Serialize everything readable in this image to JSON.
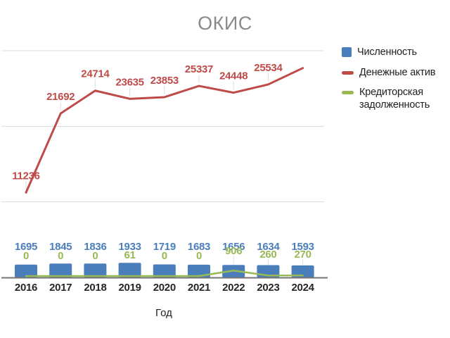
{
  "chart_data": {
    "type": "combo",
    "title": "ОКИС",
    "xlabel": "Год",
    "categories": [
      "2016",
      "2017",
      "2018",
      "2019",
      "2020",
      "2021",
      "2022",
      "2023",
      "2024"
    ],
    "series": [
      {
        "name": "Численность",
        "type": "bar",
        "color": "#4A7EBB",
        "values": [
          1695,
          1845,
          1836,
          1933,
          1719,
          1683,
          1656,
          1634,
          1593
        ],
        "labels_shown": true
      },
      {
        "name": "Денежные актив",
        "type": "line",
        "color": "#BE4B48",
        "values": [
          11236,
          21692,
          24714,
          23635,
          23853,
          25337,
          24448,
          25534,
          27700
        ],
        "point_labels": [
          "11236",
          "21692",
          "24714",
          "23635",
          "23853",
          "25337",
          "24448",
          "25534",
          null
        ]
      },
      {
        "name": "Кредиторская задолженность",
        "type": "line",
        "color": "#98B954",
        "values": [
          0,
          0,
          0,
          61,
          0,
          0,
          906,
          260,
          270
        ],
        "labels_shown": true
      }
    ],
    "ylim": [
      0,
      30000
    ],
    "gridline_values": [
      10000,
      20000,
      30000
    ],
    "grid": true,
    "y_axis_labels_shown": false,
    "legend_position": "right",
    "axis_color": "#757575",
    "gridline_color": "#dcdcdc",
    "title_color": "#8a8a8a",
    "tick_label_color": "#262626"
  }
}
